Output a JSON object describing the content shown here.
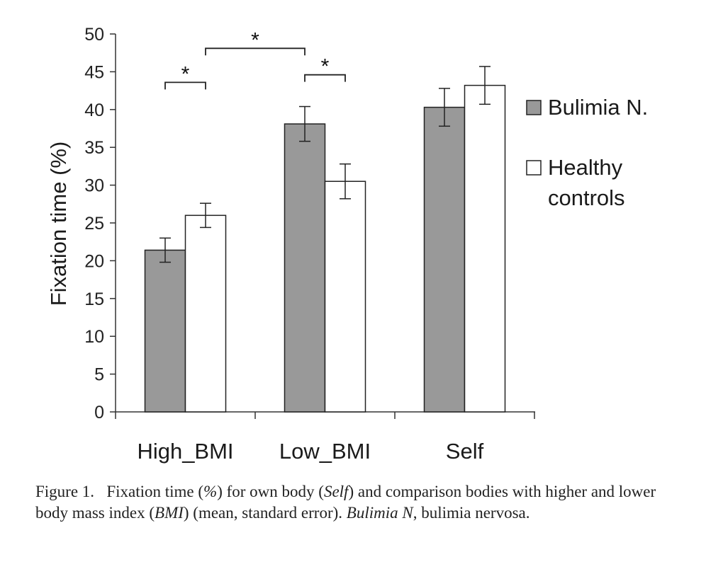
{
  "chart_data": {
    "type": "bar",
    "categories": [
      "High_BMI",
      "Low_BMI",
      "Self"
    ],
    "series": [
      {
        "name": "Bulimia N.",
        "values": [
          21.4,
          38.1,
          40.3
        ],
        "errors": [
          1.6,
          2.3,
          2.5
        ],
        "color": "#999999"
      },
      {
        "name": "Healthy controls",
        "values": [
          26.0,
          30.5,
          43.2
        ],
        "errors": [
          1.6,
          2.3,
          2.5
        ],
        "color": "#ffffff"
      }
    ],
    "ylabel": "Fixation time (%)",
    "ylim": [
      0,
      50
    ],
    "yticks": [
      0,
      5,
      10,
      15,
      20,
      25,
      30,
      35,
      40,
      45,
      50
    ],
    "legend_position": "right",
    "legend_labels": {
      "series1": "Bulimia N.",
      "series2_line1": "Healthy",
      "series2_line2": "controls"
    },
    "annotations": [
      {
        "text": "*",
        "from": "High_BMI/Bulimia N.",
        "to": "High_BMI/Healthy controls",
        "level": 43.6
      },
      {
        "text": "*",
        "from": "Low_BMI/Bulimia N.",
        "to": "Low_BMI/Healthy controls",
        "level": 44.6
      },
      {
        "text": "*",
        "from": "High_BMI/Healthy controls",
        "to": "Low_BMI/Bulimia N.",
        "level": 48.1
      }
    ]
  },
  "caption": {
    "label": "Figure 1.",
    "t1": "Fixation time (",
    "t2": "%",
    "t3": ") for own body (",
    "t4": "Self",
    "t5": ") and comparison bodies with higher and lower body mass index (",
    "t6": "BMI",
    "t7": ") (mean, standard error). ",
    "t8": "Bulimia N",
    "t9": ", bulimia nervosa."
  }
}
